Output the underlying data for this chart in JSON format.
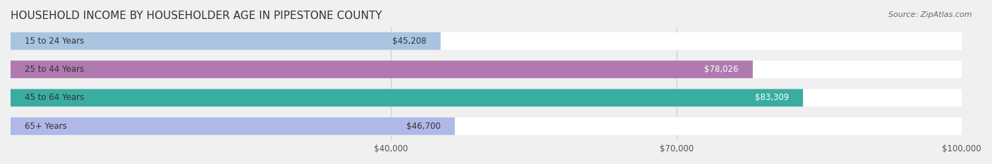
{
  "title": "HOUSEHOLD INCOME BY HOUSEHOLDER AGE IN PIPESTONE COUNTY",
  "source": "Source: ZipAtlas.com",
  "categories": [
    "15 to 24 Years",
    "25 to 44 Years",
    "45 to 64 Years",
    "65+ Years"
  ],
  "values": [
    45208,
    78026,
    83309,
    46700
  ],
  "labels": [
    "$45,208",
    "$78,026",
    "$83,309",
    "$46,700"
  ],
  "bar_colors": [
    "#a8c4e0",
    "#b07ab0",
    "#3aada0",
    "#b0b8e8"
  ],
  "bar_colors_light": [
    "#d4e4f0",
    "#d8b8d8",
    "#90d4d0",
    "#d4d8f4"
  ],
  "xlim": [
    0,
    100000
  ],
  "xticks": [
    40000,
    70000,
    100000
  ],
  "xtick_labels": [
    "$40,000",
    "$70,000",
    "$100,000"
  ],
  "background_color": "#f0f0f0",
  "bar_bg_color": "#e8e8e8",
  "title_fontsize": 11,
  "label_fontsize": 8.5,
  "tick_fontsize": 8.5,
  "source_fontsize": 8,
  "bar_height": 0.62,
  "bar_gap": 0.15
}
